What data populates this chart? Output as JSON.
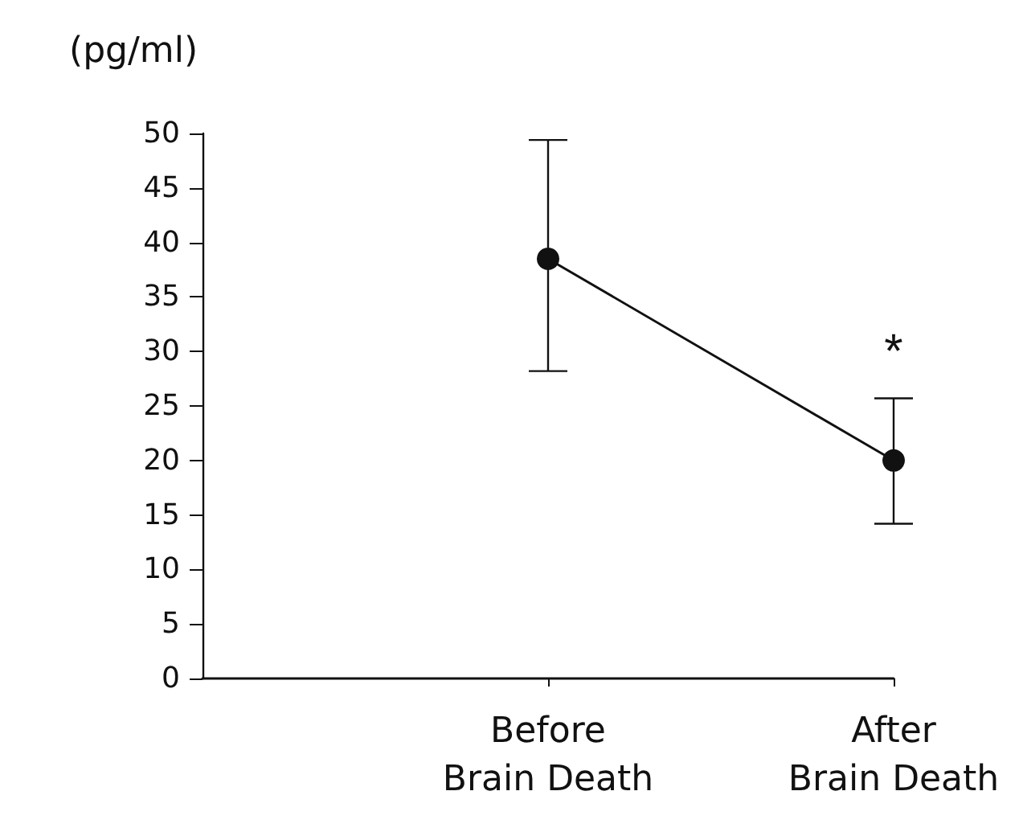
{
  "chart_data": {
    "type": "line",
    "ylabel": "(pg/ml)",
    "categories": [
      null,
      "Before\nBrain Death",
      "After\nBrain Death"
    ],
    "series": [
      {
        "color": "#111111",
        "values": [
          null,
          38.5,
          20
        ],
        "errors": [
          null,
          [
            28.2,
            49.4
          ],
          [
            14.2,
            25.7
          ]
        ]
      }
    ],
    "ylim": [
      0,
      50
    ],
    "yticks": [
      0,
      5,
      10,
      15,
      20,
      25,
      30,
      35,
      40,
      45,
      50
    ],
    "annotations": [
      "*"
    ],
    "marker": "circle",
    "line_style": "solid",
    "grid": false
  }
}
